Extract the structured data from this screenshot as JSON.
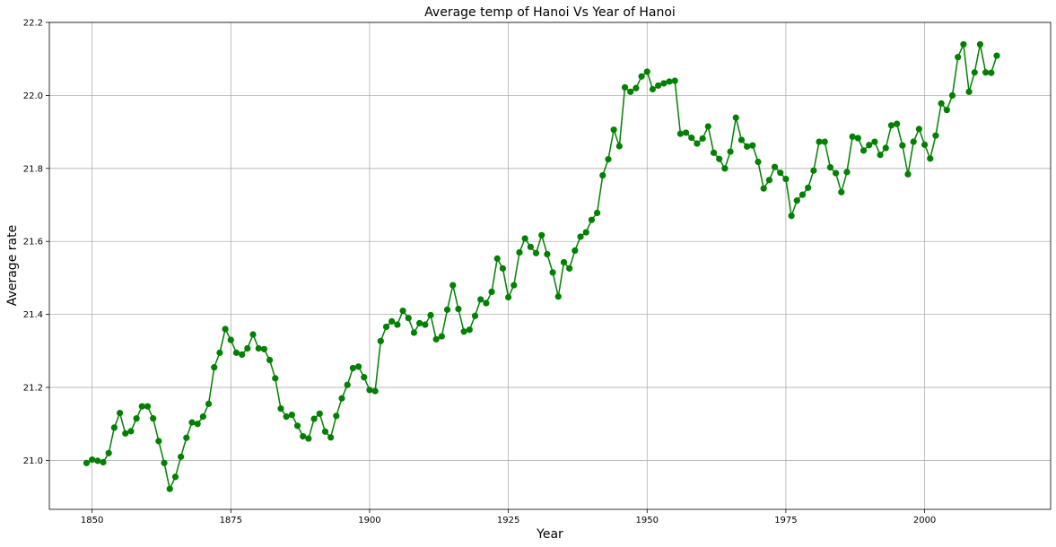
{
  "chart_data": {
    "type": "line",
    "title": "Average temp of Hanoi Vs Year of Hanoi",
    "xlabel": "Year",
    "ylabel": "Average rate",
    "xlim": [
      1842.3,
      2022.7
    ],
    "ylim": [
      20.866,
      22.2
    ],
    "xticks": [
      1850,
      1875,
      1900,
      1925,
      1950,
      1975,
      2000
    ],
    "yticks": [
      21.0,
      21.2,
      21.4,
      21.6,
      21.8,
      22.0,
      22.2
    ],
    "ytick_labels": [
      "21.0",
      "21.2",
      "21.4",
      "21.6",
      "21.8",
      "22.0",
      "22.2"
    ],
    "grid": true,
    "colors": {
      "series": "#008000"
    },
    "series": [
      {
        "x": [
          1849,
          1850,
          1851,
          1852,
          1853,
          1854,
          1855,
          1856,
          1857,
          1858,
          1859,
          1860,
          1861,
          1862,
          1863,
          1864,
          1865,
          1866,
          1867,
          1868,
          1869,
          1870,
          1871,
          1872,
          1873,
          1874,
          1875,
          1876,
          1877,
          1878,
          1879,
          1880,
          1881,
          1882,
          1883,
          1884,
          1885,
          1886,
          1887,
          1888,
          1889,
          1890,
          1891,
          1892,
          1893,
          1894,
          1895,
          1896,
          1897,
          1898,
          1899,
          1900,
          1901,
          1902,
          1903,
          1904,
          1905,
          1906,
          1907,
          1908,
          1909,
          1910,
          1911,
          1912,
          1913,
          1914,
          1915,
          1916,
          1917,
          1918,
          1919,
          1920,
          1921,
          1922,
          1923,
          1924,
          1925,
          1926,
          1927,
          1928,
          1929,
          1930,
          1931,
          1932,
          1933,
          1934,
          1935,
          1936,
          1937,
          1938,
          1939,
          1940,
          1941,
          1942,
          1943,
          1944,
          1945,
          1946,
          1947,
          1948,
          1949,
          1950,
          1951,
          1952,
          1953,
          1954,
          1955,
          1956,
          1957,
          1958,
          1959,
          1960,
          1961,
          1962,
          1963,
          1964,
          1965,
          1966,
          1967,
          1968,
          1969,
          1970,
          1971,
          1972,
          1973,
          1974,
          1975,
          1976,
          1977,
          1978,
          1979,
          1980,
          1981,
          1982,
          1983,
          1984,
          1985,
          1986,
          1987,
          1988,
          1989,
          1990,
          1991,
          1992,
          1993,
          1994,
          1995,
          1996,
          1997,
          1998,
          1999,
          2000,
          2001,
          2002,
          2003,
          2004,
          2005,
          2006,
          2007,
          2008,
          2009,
          2010,
          2011,
          2012,
          2013
        ],
        "values": [
          20.993,
          21.002,
          20.999,
          20.995,
          21.02,
          21.09,
          21.13,
          21.074,
          21.08,
          21.115,
          21.148,
          21.148,
          21.115,
          21.053,
          20.993,
          20.922,
          20.955,
          21.01,
          21.062,
          21.104,
          21.1,
          21.12,
          21.155,
          21.255,
          21.295,
          21.36,
          21.33,
          21.295,
          21.29,
          21.307,
          21.345,
          21.307,
          21.305,
          21.275,
          21.225,
          21.142,
          21.12,
          21.125,
          21.095,
          21.066,
          21.06,
          21.114,
          21.128,
          21.079,
          21.063,
          21.122,
          21.17,
          21.207,
          21.253,
          21.257,
          21.228,
          21.193,
          21.19,
          21.327,
          21.366,
          21.381,
          21.372,
          21.41,
          21.39,
          21.35,
          21.376,
          21.372,
          21.398,
          21.332,
          21.34,
          21.413,
          21.48,
          21.415,
          21.353,
          21.358,
          21.396,
          21.441,
          21.431,
          21.462,
          21.553,
          21.526,
          21.447,
          21.48,
          21.57,
          21.608,
          21.585,
          21.568,
          21.617,
          21.565,
          21.515,
          21.449,
          21.543,
          21.526,
          21.575,
          21.613,
          21.625,
          21.659,
          21.678,
          21.781,
          21.825,
          21.906,
          21.861,
          22.022,
          22.01,
          22.02,
          22.052,
          22.065,
          22.017,
          22.027,
          22.033,
          22.038,
          22.04,
          21.895,
          21.898,
          21.884,
          21.868,
          21.882,
          21.915,
          21.843,
          21.826,
          21.8,
          21.846,
          21.939,
          21.878,
          21.86,
          21.863,
          21.818,
          21.745,
          21.768,
          21.804,
          21.788,
          21.771,
          21.67,
          21.712,
          21.728,
          21.747,
          21.794,
          21.873,
          21.873,
          21.803,
          21.787,
          21.735,
          21.79,
          21.887,
          21.883,
          21.849,
          21.864,
          21.873,
          21.837,
          21.856,
          21.918,
          21.922,
          21.863,
          21.784,
          21.873,
          21.908,
          21.865,
          21.827,
          21.89,
          21.978,
          21.96,
          22.0,
          22.105,
          22.14,
          22.01,
          22.063,
          22.14,
          22.063,
          22.062,
          22.109
        ]
      }
    ]
  }
}
